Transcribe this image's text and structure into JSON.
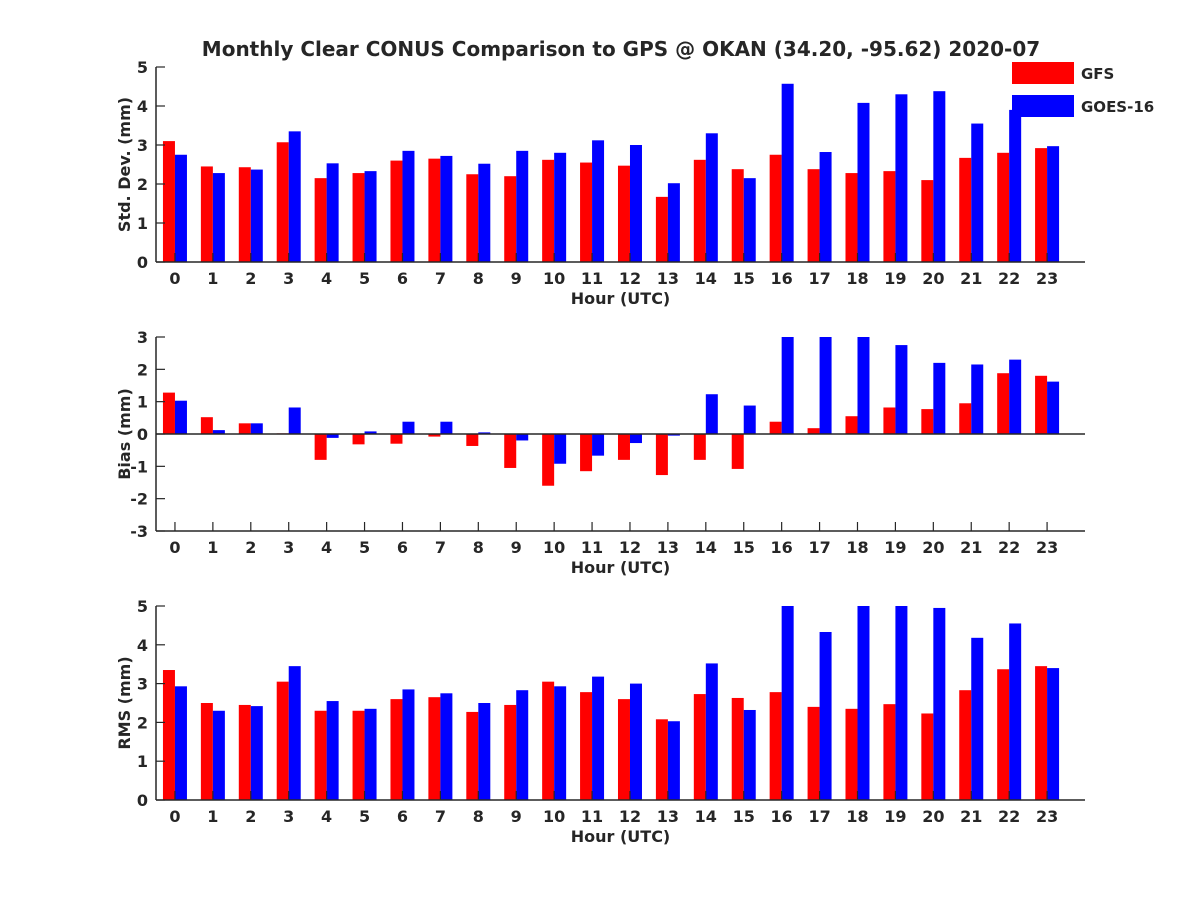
{
  "title": "Monthly Clear CONUS Comparison to GPS @ OKAN (34.20, -95.62) 2020-07",
  "colors": {
    "GFS": "#ff0000",
    "GOES-16": "#0000ff",
    "axis": "#262626"
  },
  "legend": {
    "placement": "top-right",
    "items": [
      "GFS",
      "GOES-16"
    ]
  },
  "chart_data": [
    {
      "type": "bar",
      "id": "std",
      "xlabel": "Hour (UTC)",
      "ylabel": "Std. Dev. (mm)",
      "ylim": [
        0,
        5
      ],
      "yticks": [
        0,
        1,
        2,
        3,
        4,
        5
      ],
      "grid": false,
      "categories": [
        "0",
        "1",
        "2",
        "3",
        "4",
        "5",
        "6",
        "7",
        "8",
        "9",
        "10",
        "11",
        "12",
        "13",
        "14",
        "15",
        "16",
        "17",
        "18",
        "19",
        "20",
        "21",
        "22",
        "23"
      ],
      "series": [
        {
          "name": "GFS",
          "values": [
            3.1,
            2.45,
            2.43,
            3.07,
            2.15,
            2.28,
            2.6,
            2.65,
            2.25,
            2.2,
            2.62,
            2.55,
            2.47,
            1.67,
            2.62,
            2.38,
            2.75,
            2.38,
            2.28,
            2.33,
            2.1,
            2.67,
            2.8,
            2.92
          ]
        },
        {
          "name": "GOES-16",
          "values": [
            2.75,
            2.28,
            2.37,
            3.35,
            2.53,
            2.33,
            2.85,
            2.72,
            2.52,
            2.85,
            2.8,
            3.12,
            3.0,
            2.02,
            3.3,
            2.15,
            4.57,
            2.82,
            4.08,
            4.3,
            4.38,
            3.55,
            3.9,
            2.97
          ]
        }
      ]
    },
    {
      "type": "bar",
      "id": "bias",
      "xlabel": "Hour (UTC)",
      "ylabel": "Bias (mm)",
      "ylim": [
        -3,
        3
      ],
      "yticks": [
        -3,
        -2,
        -1,
        0,
        1,
        2,
        3
      ],
      "grid": false,
      "categories": [
        "0",
        "1",
        "2",
        "3",
        "4",
        "5",
        "6",
        "7",
        "8",
        "9",
        "10",
        "11",
        "12",
        "13",
        "14",
        "15",
        "16",
        "17",
        "18",
        "19",
        "20",
        "21",
        "22",
        "23"
      ],
      "series": [
        {
          "name": "GFS",
          "values": [
            1.28,
            0.52,
            0.33,
            0.02,
            -0.8,
            -0.32,
            -0.3,
            -0.08,
            -0.37,
            -1.05,
            -1.6,
            -1.15,
            -0.8,
            -1.27,
            -0.8,
            -1.08,
            0.38,
            0.18,
            0.55,
            0.82,
            0.77,
            0.95,
            1.88,
            1.8
          ]
        },
        {
          "name": "GOES-16",
          "values": [
            1.03,
            0.12,
            0.33,
            0.82,
            -0.12,
            0.08,
            0.38,
            0.38,
            0.05,
            -0.2,
            -0.92,
            -0.67,
            -0.28,
            -0.05,
            1.23,
            0.88,
            3.0,
            3.0,
            3.0,
            2.75,
            2.2,
            2.15,
            2.3,
            1.62
          ]
        }
      ]
    },
    {
      "type": "bar",
      "id": "rms",
      "xlabel": "Hour (UTC)",
      "ylabel": "RMS (mm)",
      "ylim": [
        0,
        5
      ],
      "yticks": [
        0,
        1,
        2,
        3,
        4,
        5
      ],
      "grid": false,
      "categories": [
        "0",
        "1",
        "2",
        "3",
        "4",
        "5",
        "6",
        "7",
        "8",
        "9",
        "10",
        "11",
        "12",
        "13",
        "14",
        "15",
        "16",
        "17",
        "18",
        "19",
        "20",
        "21",
        "22",
        "23"
      ],
      "series": [
        {
          "name": "GFS",
          "values": [
            3.35,
            2.5,
            2.45,
            3.05,
            2.3,
            2.3,
            2.6,
            2.65,
            2.27,
            2.45,
            3.05,
            2.78,
            2.6,
            2.08,
            2.73,
            2.63,
            2.78,
            2.4,
            2.35,
            2.47,
            2.23,
            2.83,
            3.37,
            3.45
          ]
        },
        {
          "name": "GOES-16",
          "values": [
            2.93,
            2.3,
            2.42,
            3.45,
            2.55,
            2.35,
            2.85,
            2.75,
            2.5,
            2.83,
            2.93,
            3.18,
            3.0,
            2.03,
            3.52,
            2.32,
            5.0,
            4.33,
            5.0,
            5.0,
            4.95,
            4.18,
            4.55,
            3.4
          ]
        }
      ]
    }
  ]
}
